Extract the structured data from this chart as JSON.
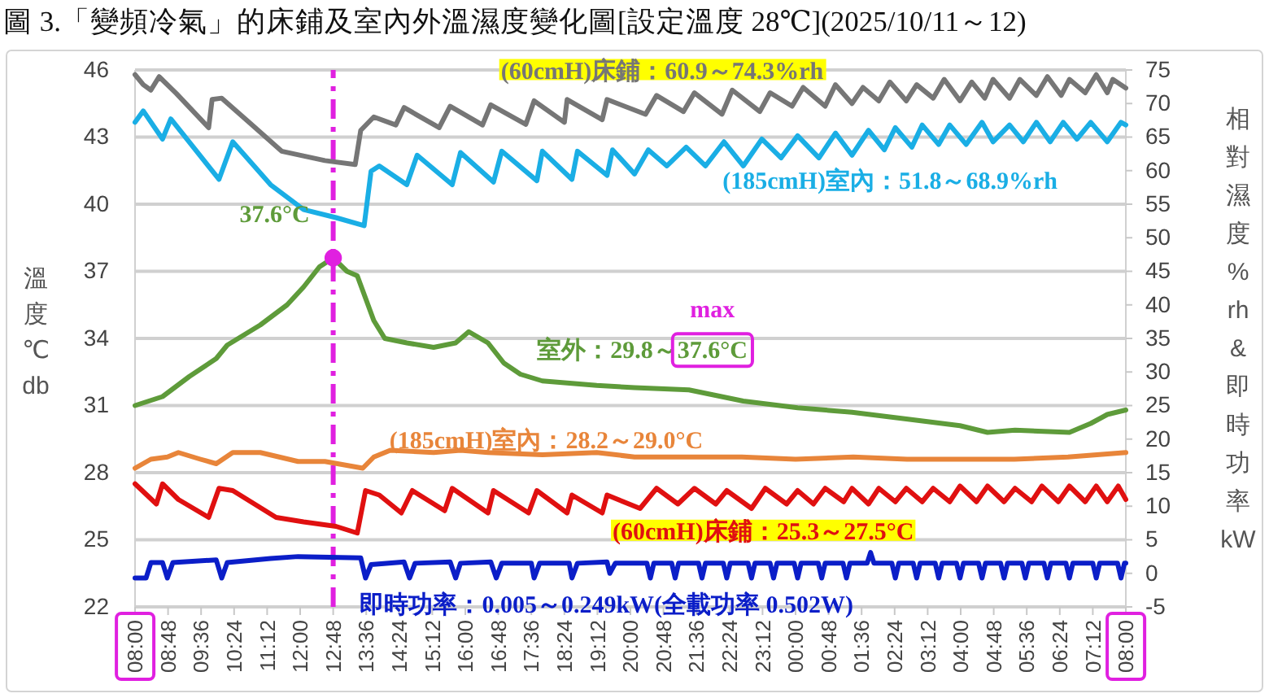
{
  "chart_data": {
    "type": "line",
    "title": "圖 3.「變頻冷氣」的床鋪及室內外溫濕度變化圖[設定溫度 28℃](2025/10/11～12)",
    "ylabel": "溫度℃db",
    "y2label": "相對濕度%rh&即時功率kW",
    "xlim": [
      "2025-10-11T08:00",
      "2025-10-12T08:00"
    ],
    "xticks": [
      {
        "value": "2025-10-11T08:00",
        "label": "08:00"
      },
      {
        "value": "2025-10-11T08:48",
        "label": "08:48"
      },
      {
        "value": "2025-10-11T09:36",
        "label": "09:36"
      },
      {
        "value": "2025-10-11T10:24",
        "label": "10:24"
      },
      {
        "value": "2025-10-11T11:12",
        "label": "11:12"
      },
      {
        "value": "2025-10-11T12:00",
        "label": "12:00"
      },
      {
        "value": "2025-10-11T12:48",
        "label": "12:48"
      },
      {
        "value": "2025-10-11T13:36",
        "label": "13:36"
      },
      {
        "value": "2025-10-11T14:24",
        "label": "14:24"
      },
      {
        "value": "2025-10-11T15:12",
        "label": "15:12"
      },
      {
        "value": "2025-10-11T16:00",
        "label": "16:00"
      },
      {
        "value": "2025-10-11T16:48",
        "label": "16:48"
      },
      {
        "value": "2025-10-11T17:36",
        "label": "17:36"
      },
      {
        "value": "2025-10-11T18:24",
        "label": "18:24"
      },
      {
        "value": "2025-10-11T19:12",
        "label": "19:12"
      },
      {
        "value": "2025-10-11T20:00",
        "label": "20:00"
      },
      {
        "value": "2025-10-11T20:48",
        "label": "20:48"
      },
      {
        "value": "2025-10-11T21:36",
        "label": "21:36"
      },
      {
        "value": "2025-10-11T22:24",
        "label": "22:24"
      },
      {
        "value": "2025-10-11T23:12",
        "label": "23:12"
      },
      {
        "value": "2025-10-12T00:00",
        "label": "00:00"
      },
      {
        "value": "2025-10-12T00:48",
        "label": "00:48"
      },
      {
        "value": "2025-10-12T01:36",
        "label": "01:36"
      },
      {
        "value": "2025-10-12T02:24",
        "label": "02:24"
      },
      {
        "value": "2025-10-12T03:12",
        "label": "03:12"
      },
      {
        "value": "2025-10-12T04:00",
        "label": "04:00"
      },
      {
        "value": "2025-10-12T04:48",
        "label": "04:48"
      },
      {
        "value": "2025-10-12T05:36",
        "label": "05:36"
      },
      {
        "value": "2025-10-12T06:24",
        "label": "06:24"
      },
      {
        "value": "2025-10-12T07:12",
        "label": "07:12"
      },
      {
        "value": "2025-10-12T08:00",
        "label": "08:00"
      }
    ],
    "ylim": [
      22,
      46
    ],
    "yticks": [
      22,
      25,
      28,
      31,
      34,
      37,
      40,
      43,
      46
    ],
    "y2lim": [
      -5,
      75
    ],
    "y2ticks": [
      -5,
      0,
      5,
      10,
      15,
      20,
      25,
      30,
      35,
      40,
      45,
      50,
      55,
      60,
      65,
      70,
      75
    ],
    "grid": "y",
    "series": [
      {
        "name": "(60cmH)床鋪：60.9～74.3%rh",
        "color": "#767676",
        "axis": "y2",
        "x": [
          "2025-10-11T08:00",
          "2025-10-11T08:12",
          "2025-10-11T08:23",
          "2025-10-11T08:35",
          "2025-10-11T09:00",
          "2025-10-11T09:47",
          "2025-10-11T09:52",
          "2025-10-11T10:06",
          "2025-10-11T10:48",
          "2025-10-11T11:33",
          "2025-10-11T12:36",
          "2025-10-11T13:20",
          "2025-10-11T13:28",
          "2025-10-11T13:47",
          "2025-10-11T14:19",
          "2025-10-11T14:31",
          "2025-10-11T15:22",
          "2025-10-11T15:38",
          "2025-10-11T16:25",
          "2025-10-11T16:37",
          "2025-10-11T17:28",
          "2025-10-11T17:40",
          "2025-10-11T18:24",
          "2025-10-11T18:28",
          "2025-10-11T19:19",
          "2025-10-11T19:26",
          "2025-10-11T20:22",
          "2025-10-11T20:38",
          "2025-10-11T21:17",
          "2025-10-11T21:33",
          "2025-10-11T22:13",
          "2025-10-11T22:28",
          "2025-10-11T23:08",
          "2025-10-11T23:23",
          "2025-10-11T23:55",
          "2025-10-12T00:11",
          "2025-10-12T00:43",
          "2025-10-12T00:58",
          "2025-10-12T01:22",
          "2025-10-12T01:38",
          "2025-10-12T02:01",
          "2025-10-12T02:17",
          "2025-10-12T02:41",
          "2025-10-12T02:56",
          "2025-10-12T03:20",
          "2025-10-12T03:36",
          "2025-10-12T03:59",
          "2025-10-12T04:16",
          "2025-10-12T04:35",
          "2025-10-12T04:47",
          "2025-10-12T05:11",
          "2025-10-12T05:26",
          "2025-10-12T05:50",
          "2025-10-12T06:06",
          "2025-10-12T06:26",
          "2025-10-12T06:38",
          "2025-10-12T07:01",
          "2025-10-12T07:17",
          "2025-10-12T07:33",
          "2025-10-12T07:41",
          "2025-10-12T08:00"
        ],
        "values": [
          74.3,
          72.8,
          72.0,
          74.0,
          71.5,
          66.4,
          70.6,
          70.8,
          67.0,
          62.9,
          61.5,
          60.9,
          66.0,
          68.0,
          66.8,
          69.4,
          66.4,
          69.6,
          66.8,
          69.8,
          66.9,
          70.4,
          67.2,
          70.6,
          67.6,
          70.6,
          68.4,
          71.2,
          68.8,
          71.6,
          68.4,
          72.0,
          68.8,
          71.6,
          69.6,
          72.4,
          69.6,
          72.8,
          70.0,
          72.4,
          70.4,
          73.2,
          70.4,
          72.8,
          70.8,
          73.6,
          70.4,
          73.2,
          70.8,
          73.6,
          70.8,
          73.6,
          71.2,
          74.0,
          71.2,
          73.6,
          71.6,
          74.3,
          71.6,
          73.6,
          72.3
        ]
      },
      {
        "name": "(185cmH)室內：51.8～68.9%rh",
        "color": "#1aaee5",
        "axis": "y2",
        "x": [
          "2025-10-11T08:00",
          "2025-10-11T08:12",
          "2025-10-11T08:40",
          "2025-10-11T08:52",
          "2025-10-11T10:02",
          "2025-10-11T10:22",
          "2025-10-11T11:17",
          "2025-10-11T12:05",
          "2025-10-11T12:52",
          "2025-10-11T13:33",
          "2025-10-11T13:43",
          "2025-10-11T13:55",
          "2025-10-11T14:35",
          "2025-10-11T14:50",
          "2025-10-11T15:41",
          "2025-10-11T15:53",
          "2025-10-11T16:41",
          "2025-10-11T16:53",
          "2025-10-11T17:44",
          "2025-10-11T17:52",
          "2025-10-11T18:35",
          "2025-10-11T18:43",
          "2025-10-11T19:26",
          "2025-10-11T19:34",
          "2025-10-11T20:06",
          "2025-10-11T20:26",
          "2025-10-11T20:53",
          "2025-10-11T21:21",
          "2025-10-11T21:49",
          "2025-10-11T22:16",
          "2025-10-11T22:44",
          "2025-10-11T23:11",
          "2025-10-11T23:39",
          "2025-10-12T00:03",
          "2025-10-12T00:34",
          "2025-10-12T00:58",
          "2025-10-12T01:22",
          "2025-10-12T01:46",
          "2025-10-12T02:09",
          "2025-10-12T02:25",
          "2025-10-12T02:49",
          "2025-10-12T03:04",
          "2025-10-12T03:28",
          "2025-10-12T03:44",
          "2025-10-12T04:08",
          "2025-10-12T04:31",
          "2025-10-12T04:47",
          "2025-10-12T05:11",
          "2025-10-12T05:31",
          "2025-10-12T05:50",
          "2025-10-12T06:10",
          "2025-10-12T06:29",
          "2025-10-12T06:49",
          "2025-10-12T07:09",
          "2025-10-12T07:33",
          "2025-10-12T07:53",
          "2025-10-12T08:00"
        ],
        "values": [
          67.2,
          68.9,
          64.7,
          67.7,
          58.7,
          64.3,
          57.9,
          54.2,
          53.0,
          51.8,
          59.9,
          60.7,
          57.9,
          62.3,
          57.9,
          62.7,
          58.3,
          62.9,
          58.5,
          62.9,
          58.7,
          62.9,
          59.3,
          63.1,
          59.5,
          63.1,
          60.7,
          63.5,
          60.7,
          64.3,
          60.7,
          64.7,
          61.9,
          65.2,
          61.9,
          65.6,
          62.3,
          66.0,
          63.1,
          66.4,
          63.5,
          66.8,
          63.9,
          66.8,
          63.9,
          67.2,
          64.3,
          66.8,
          64.3,
          67.2,
          64.3,
          67.2,
          64.7,
          67.2,
          64.3,
          67.2,
          66.8
        ]
      },
      {
        "name": "室外：29.8～37.6°C",
        "color": "#5e9b3a",
        "x": [
          "2025-10-11T08:00",
          "2025-10-11T08:40",
          "2025-10-11T09:19",
          "2025-10-11T09:58",
          "2025-10-11T10:14",
          "2025-10-11T11:02",
          "2025-10-11T11:41",
          "2025-10-11T12:05",
          "2025-10-11T12:28",
          "2025-10-11T12:48",
          "2025-10-11T13:08",
          "2025-10-11T13:23",
          "2025-10-11T13:47",
          "2025-10-11T14:03",
          "2025-10-11T14:35",
          "2025-10-11T15:14",
          "2025-10-11T15:46",
          "2025-10-11T16:05",
          "2025-10-11T16:33",
          "2025-10-11T16:56",
          "2025-10-11T17:20",
          "2025-10-11T17:52",
          "2025-10-11T19:11",
          "2025-10-11T20:06",
          "2025-10-11T21:25",
          "2025-10-11T22:44",
          "2025-10-12T00:03",
          "2025-10-12T01:22",
          "2025-10-12T02:41",
          "2025-10-12T03:59",
          "2025-10-12T04:39",
          "2025-10-12T05:19",
          "2025-10-12T06:38",
          "2025-10-12T07:09",
          "2025-10-12T07:33",
          "2025-10-12T08:00"
        ],
        "values": [
          31.0,
          31.4,
          32.3,
          33.1,
          33.7,
          34.6,
          35.5,
          36.3,
          37.2,
          37.6,
          37.0,
          36.8,
          34.8,
          34.0,
          33.8,
          33.6,
          33.8,
          34.3,
          33.8,
          32.9,
          32.4,
          32.1,
          31.9,
          31.8,
          31.7,
          31.2,
          30.9,
          30.7,
          30.4,
          30.1,
          29.8,
          29.9,
          29.8,
          30.2,
          30.6,
          30.8
        ]
      },
      {
        "name": "(185cmH)室內：28.2～29.0°C",
        "color": "#e8853a",
        "x": [
          "2025-10-11T08:00",
          "2025-10-11T08:23",
          "2025-10-11T08:47",
          "2025-10-11T09:03",
          "2025-10-11T09:35",
          "2025-10-11T09:58",
          "2025-10-11T10:22",
          "2025-10-11T11:02",
          "2025-10-11T11:57",
          "2025-10-11T12:36",
          "2025-10-11T13:31",
          "2025-10-11T13:47",
          "2025-10-11T14:11",
          "2025-10-11T15:14",
          "2025-10-11T15:53",
          "2025-10-11T16:33",
          "2025-10-11T17:52",
          "2025-10-11T19:11",
          "2025-10-11T20:06",
          "2025-10-11T21:24",
          "2025-10-11T22:42",
          "2025-10-12T00:00",
          "2025-10-12T01:24",
          "2025-10-12T02:42",
          "2025-10-12T04:00",
          "2025-10-12T05:18",
          "2025-10-12T06:36",
          "2025-10-12T08:00"
        ],
        "values": [
          28.2,
          28.6,
          28.7,
          28.9,
          28.6,
          28.4,
          28.9,
          28.9,
          28.5,
          28.5,
          28.2,
          28.7,
          29.0,
          28.9,
          29.0,
          28.9,
          28.8,
          28.9,
          28.7,
          28.7,
          28.7,
          28.6,
          28.7,
          28.6,
          28.6,
          28.6,
          28.7,
          28.9
        ]
      },
      {
        "name": "(60cmH)床鋪：25.3～27.5°C",
        "color": "#e01010",
        "x": [
          "2025-10-11T08:00",
          "2025-10-11T08:31",
          "2025-10-11T08:40",
          "2025-10-11T09:03",
          "2025-10-11T09:47",
          "2025-10-11T10:02",
          "2025-10-11T10:22",
          "2025-10-11T11:25",
          "2025-10-11T12:05",
          "2025-10-11T12:52",
          "2025-10-11T13:23",
          "2025-10-11T13:35",
          "2025-10-11T13:55",
          "2025-10-11T14:27",
          "2025-10-11T14:43",
          "2025-10-11T15:30",
          "2025-10-11T15:41",
          "2025-10-11T16:33",
          "2025-10-11T16:41",
          "2025-10-11T17:32",
          "2025-10-11T17:44",
          "2025-10-11T18:28",
          "2025-10-11T18:35",
          "2025-10-11T19:19",
          "2025-10-11T19:26",
          "2025-10-11T20:14",
          "2025-10-11T20:38",
          "2025-10-11T21:09",
          "2025-10-11T21:33",
          "2025-10-11T22:04",
          "2025-10-11T22:20",
          "2025-10-11T22:56",
          "2025-10-11T23:16",
          "2025-10-11T23:47",
          "2025-10-12T00:03",
          "2025-10-12T00:26",
          "2025-10-12T00:43",
          "2025-10-12T01:10",
          "2025-10-12T01:22",
          "2025-10-12T01:46",
          "2025-10-12T02:01",
          "2025-10-12T02:25",
          "2025-10-12T02:41",
          "2025-10-12T03:04",
          "2025-10-12T03:20",
          "2025-10-12T03:44",
          "2025-10-12T03:59",
          "2025-10-12T04:23",
          "2025-10-12T04:39",
          "2025-10-12T05:03",
          "2025-10-12T05:19",
          "2025-10-12T05:43",
          "2025-10-12T05:58",
          "2025-10-12T06:22",
          "2025-10-12T06:38",
          "2025-10-12T07:01",
          "2025-10-12T07:17",
          "2025-10-12T07:33",
          "2025-10-12T07:49",
          "2025-10-12T08:00"
        ],
        "values": [
          27.5,
          26.6,
          27.5,
          26.8,
          26.0,
          27.3,
          27.2,
          26.0,
          25.8,
          25.6,
          25.3,
          27.2,
          27.0,
          26.2,
          27.2,
          26.3,
          27.3,
          26.2,
          27.2,
          26.2,
          27.2,
          26.2,
          27.0,
          26.2,
          27.0,
          26.4,
          27.3,
          26.6,
          27.3,
          26.6,
          27.2,
          26.4,
          27.3,
          26.6,
          27.2,
          26.6,
          27.3,
          26.7,
          27.3,
          26.6,
          27.3,
          26.7,
          27.3,
          26.7,
          27.3,
          26.7,
          27.4,
          26.7,
          27.4,
          26.7,
          27.3,
          26.7,
          27.4,
          26.7,
          27.4,
          26.7,
          27.4,
          26.7,
          27.4,
          26.8
        ]
      },
      {
        "name": "即時功率：0.005～0.249kW(全載功率 0.502W)",
        "color": "#0b1ec8",
        "axis": "y2",
        "x": [
          "2025-10-11T08:00",
          "2025-10-11T08:16",
          "2025-10-11T08:23",
          "2025-10-11T08:40",
          "2025-10-11T08:47",
          "2025-10-11T08:55",
          "2025-10-11T09:58",
          "2025-10-11T10:06",
          "2025-10-11T10:14",
          "2025-10-11T11:17",
          "2025-10-11T11:57",
          "2025-10-11T13:28",
          "2025-10-11T13:35",
          "2025-10-11T13:43",
          "2025-10-11T14:31",
          "2025-10-11T14:39",
          "2025-10-11T14:47",
          "2025-10-11T15:38",
          "2025-10-11T15:46",
          "2025-10-11T15:53",
          "2025-10-11T16:37",
          "2025-10-11T16:45",
          "2025-10-11T16:53",
          "2025-10-11T17:36",
          "2025-10-11T17:40",
          "2025-10-11T17:48",
          "2025-10-11T18:31",
          "2025-10-11T18:35",
          "2025-10-11T18:43",
          "2025-10-11T19:26",
          "2025-10-11T19:30",
          "2025-10-11T19:38",
          "2025-10-11T20:24",
          "2025-10-11T20:29",
          "2025-10-11T20:34",
          "2025-10-11T21:00",
          "2025-10-11T21:05",
          "2025-10-11T21:10",
          "2025-10-11T21:39",
          "2025-10-11T21:44",
          "2025-10-11T21:49",
          "2025-10-11T22:15",
          "2025-10-11T22:20",
          "2025-10-11T22:25",
          "2025-10-11T22:51",
          "2025-10-11T22:56",
          "2025-10-11T23:01",
          "2025-10-11T23:23",
          "2025-10-11T23:28",
          "2025-10-11T23:33",
          "2025-10-11T23:58",
          "2025-10-12T00:03",
          "2025-10-12T00:08",
          "2025-10-12T00:33",
          "2025-10-12T00:38",
          "2025-10-12T00:43",
          "2025-10-12T01:09",
          "2025-10-12T01:14",
          "2025-10-12T01:19",
          "2025-10-12T01:44",
          "2025-10-12T01:49",
          "2025-10-12T01:54",
          "2025-10-12T02:20",
          "2025-10-12T02:25",
          "2025-10-12T02:30",
          "2025-10-12T02:51",
          "2025-10-12T02:56",
          "2025-10-12T03:01",
          "2025-10-12T03:23",
          "2025-10-12T03:28",
          "2025-10-12T03:33",
          "2025-10-12T03:54",
          "2025-10-12T03:59",
          "2025-10-12T04:04",
          "2025-10-12T04:26",
          "2025-10-12T04:31",
          "2025-10-12T04:36",
          "2025-10-12T04:58",
          "2025-10-12T05:03",
          "2025-10-12T05:08",
          "2025-10-12T05:29",
          "2025-10-12T05:34",
          "2025-10-12T05:39",
          "2025-10-12T06:01",
          "2025-10-12T06:06",
          "2025-10-12T06:11",
          "2025-10-12T06:33",
          "2025-10-12T06:38",
          "2025-10-12T06:43",
          "2025-10-12T07:12",
          "2025-10-12T07:17",
          "2025-10-12T07:22",
          "2025-10-12T07:48",
          "2025-10-12T07:53",
          "2025-10-12T07:58",
          "2025-10-12T08:00"
        ],
        "values": [
          -0.7,
          -0.7,
          1.6,
          1.6,
          -0.7,
          1.6,
          2.0,
          -0.7,
          1.6,
          2.2,
          2.5,
          2.3,
          -0.7,
          1.3,
          1.7,
          -0.7,
          1.5,
          1.7,
          -0.7,
          1.5,
          1.7,
          -0.7,
          1.5,
          1.5,
          -0.7,
          1.5,
          1.5,
          -0.7,
          1.5,
          1.7,
          0.0,
          1.5,
          1.5,
          -0.7,
          1.5,
          1.5,
          -0.7,
          1.5,
          1.5,
          -0.7,
          1.5,
          1.5,
          -0.7,
          1.5,
          1.5,
          -0.7,
          1.5,
          1.5,
          -0.7,
          1.5,
          1.5,
          -0.7,
          1.5,
          1.5,
          -0.7,
          1.5,
          1.5,
          -0.7,
          1.5,
          1.5,
          3.1,
          1.5,
          1.5,
          -0.7,
          1.5,
          1.5,
          -0.7,
          1.5,
          1.5,
          -0.7,
          1.5,
          1.5,
          -0.7,
          1.5,
          1.5,
          -0.7,
          1.5,
          1.5,
          -0.7,
          1.5,
          1.5,
          -0.7,
          1.5,
          1.5,
          -0.7,
          1.5,
          1.5,
          -0.7,
          1.5,
          1.5,
          -0.7,
          1.5,
          1.5,
          -0.7,
          1.5,
          1.5
        ]
      },
      {
        "type": "scatter",
        "color": "#e020e0",
        "marker": "circle",
        "x": [
          "2025-10-11T12:48"
        ],
        "values": [
          37.6
        ]
      }
    ],
    "ref_lines": [
      {
        "axis": "x",
        "value": "2025-10-11T12:48",
        "color": "#e020e0",
        "line_style": "dashed"
      }
    ],
    "annotations": [
      "max",
      {
        "text": "37.6°C",
        "x": "2025-10-11T12:48",
        "y": 37.6
      }
    ]
  }
}
